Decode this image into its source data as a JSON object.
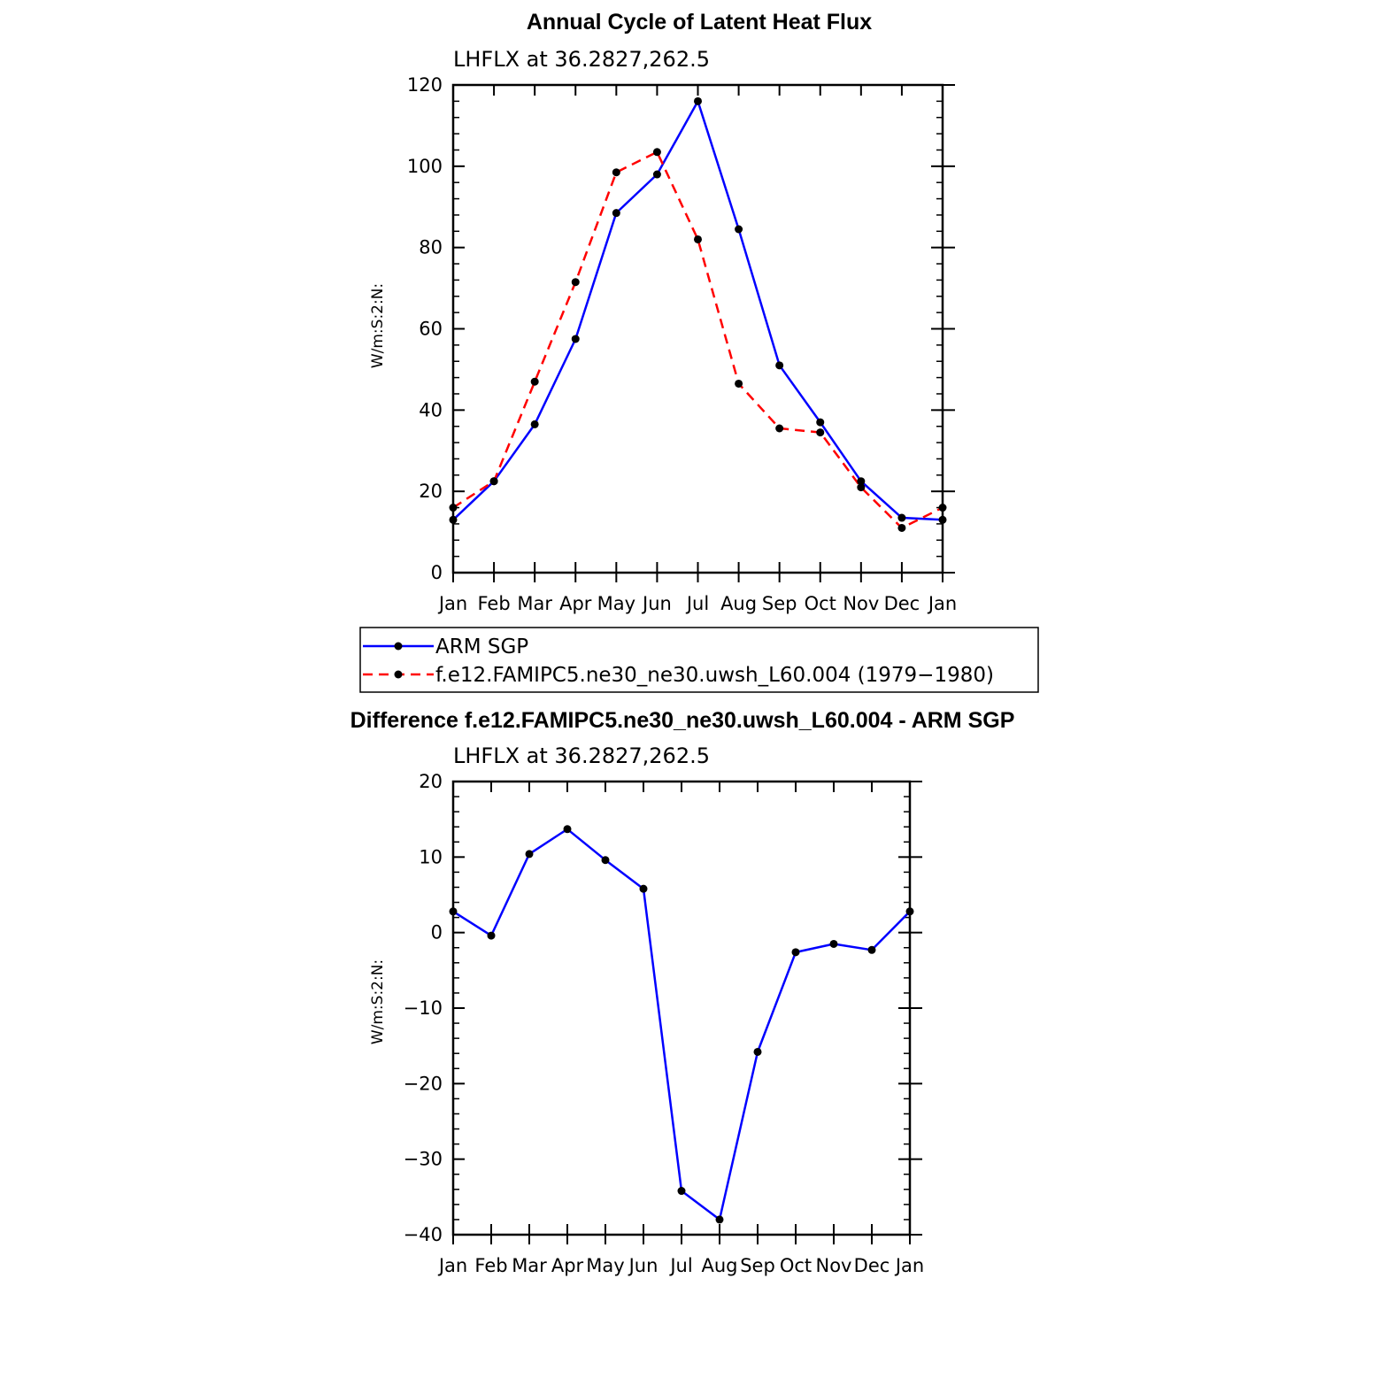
{
  "chart_data": [
    {
      "type": "line",
      "title": "Annual Cycle of Latent Heat Flux",
      "subtitle": "LHFLX at 36.2827,262.5",
      "xlabel": "",
      "ylabel": "W/m:S:2:N:",
      "categories": [
        "Jan",
        "Feb",
        "Mar",
        "Apr",
        "May",
        "Jun",
        "Jul",
        "Aug",
        "Sep",
        "Oct",
        "Nov",
        "Dec",
        "Jan"
      ],
      "ylim": [
        0,
        120
      ],
      "yticks": [
        0,
        20,
        40,
        60,
        80,
        100,
        120
      ],
      "series": [
        {
          "name": "ARM SGP",
          "color": "#0000ff",
          "dash": "solid",
          "values": [
            13,
            22.5,
            36.5,
            57.5,
            88.5,
            98,
            116,
            84.5,
            51,
            37,
            22.5,
            13.5,
            13
          ]
        },
        {
          "name": "f.e12.FAMIPC5.ne30_ne30.uwsh_L60.004 (1979−1980)",
          "color": "#ff0000",
          "dash": "dashed",
          "values": [
            16,
            22.5,
            47,
            71.5,
            98.5,
            103.5,
            82,
            46.5,
            35.5,
            34.5,
            21,
            11,
            16
          ]
        }
      ],
      "legend_position": "below"
    },
    {
      "type": "line",
      "title": "Difference f.e12.FAMIPC5.ne30_ne30.uwsh_L60.004 - ARM SGP",
      "subtitle": "LHFLX at 36.2827,262.5",
      "xlabel": "",
      "ylabel": "W/m:S:2:N:",
      "categories": [
        "Jan",
        "Feb",
        "Mar",
        "Apr",
        "May",
        "Jun",
        "Jul",
        "Aug",
        "Sep",
        "Oct",
        "Nov",
        "Dec",
        "Jan"
      ],
      "ylim": [
        -40,
        20
      ],
      "yticks": [
        -40,
        -30,
        -20,
        -10,
        0,
        10,
        20
      ],
      "ytick_labels": [
        "−40",
        "−30",
        "−20",
        "−10",
        "0",
        "10",
        "20"
      ],
      "series": [
        {
          "name": "Difference",
          "color": "#0000ff",
          "dash": "solid",
          "values": [
            2.8,
            -0.4,
            10.4,
            13.7,
            9.6,
            5.8,
            -34.2,
            -38,
            -15.8,
            -2.6,
            -1.5,
            -2.3,
            2.8
          ]
        }
      ]
    }
  ]
}
